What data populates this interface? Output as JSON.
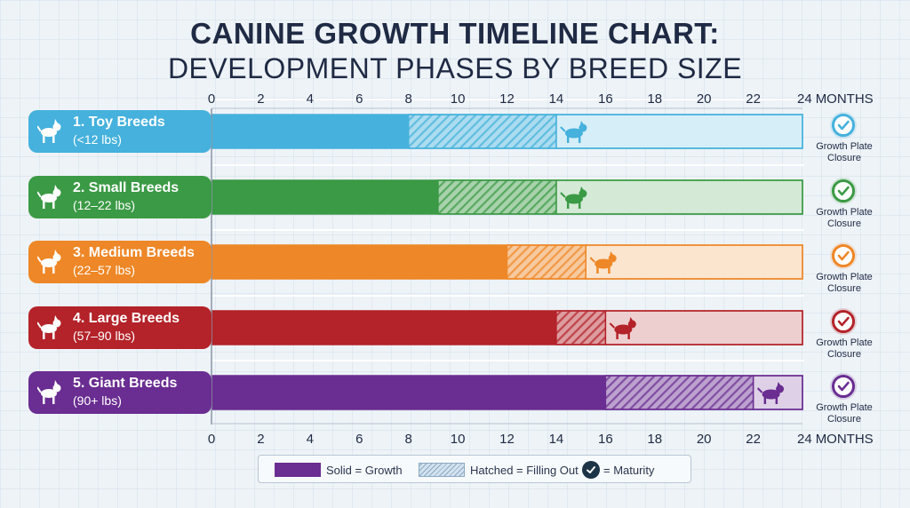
{
  "chart_data": {
    "type": "bar",
    "title": "CANINE GROWTH TIMELINE CHART:",
    "subtitle": "DEVELOPMENT PHASES BY BREED SIZE",
    "x_unit": "MONTHS",
    "xlim": [
      0,
      24
    ],
    "ticks": [
      "0",
      "2",
      "4",
      "6",
      "8",
      "10",
      "12",
      "14",
      "16",
      "18",
      "20",
      "22",
      "24"
    ],
    "series": [
      {
        "name": "1. Toy Breeds",
        "range": "(<12 lbs)",
        "color": "#45b1dc",
        "growth_end": 8,
        "filling_end": 14,
        "maturity_end": 24,
        "end_label": "Growth Plate Closure"
      },
      {
        "name": "2. Small Breeds",
        "range": "(12–22 lbs)",
        "color": "#3b9a45",
        "growth_end": 9.2,
        "filling_end": 14,
        "maturity_end": 24,
        "end_label": "Growth Plate Closure"
      },
      {
        "name": "3. Medium Breeds",
        "range": "(22–57 lbs)",
        "color": "#ee8727",
        "growth_end": 12,
        "filling_end": 15.2,
        "maturity_end": 24,
        "end_label": "Growth Plate Closure"
      },
      {
        "name": "4. Large Breeds",
        "range": "(57–90 lbs)",
        "color": "#b32329",
        "growth_end": 14,
        "filling_end": 16,
        "maturity_end": 24,
        "end_label": "Growth Plate Closure"
      },
      {
        "name": "5. Giant Breeds",
        "range": "(90+ lbs)",
        "color": "#6a2d91",
        "growth_end": 16,
        "filling_end": 22,
        "maturity_end": 24,
        "end_label": "Growth Plate Closure"
      }
    ],
    "legend": {
      "solid": "Solid = Growth",
      "hatched": "Hatched = Filling Out",
      "maturity": "= Maturity"
    },
    "grid": true,
    "legend_position": "bottom"
  }
}
